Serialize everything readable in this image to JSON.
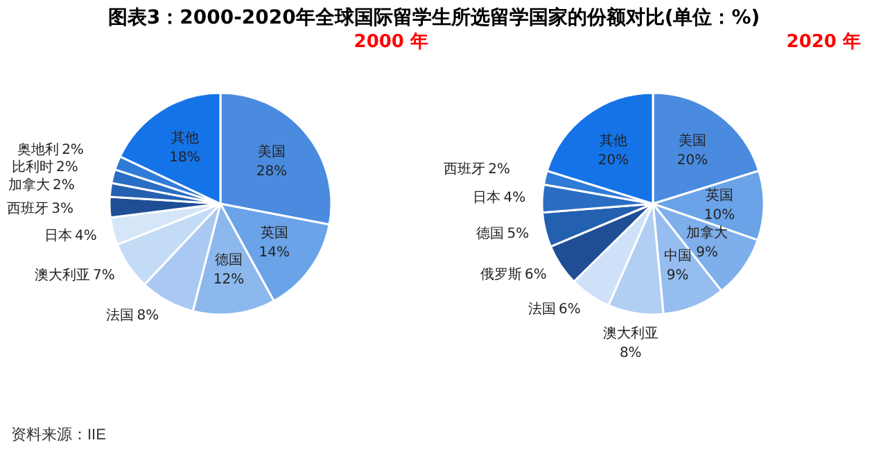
{
  "chart_data": [
    {
      "type": "pie",
      "title": "图表3：2000-2020年全球国际留学生所选留学国家的份额对比(单位：%)",
      "subtitle": "2000 年",
      "categories": [
        "美国",
        "英国",
        "德国",
        "法国",
        "澳大利亚",
        "日本",
        "西班牙",
        "加拿大",
        "比利时",
        "奥地利",
        "其他"
      ],
      "values": [
        28,
        14,
        12,
        8,
        7,
        4,
        3,
        2,
        2,
        2,
        18
      ],
      "value_labels": [
        "28%",
        "14%",
        "12%",
        "8%",
        "7%",
        "4%",
        "3%",
        "2%",
        "2%",
        "2%",
        "18%"
      ],
      "colors": [
        "#4a8be0",
        "#6aa3e8",
        "#8db8ee",
        "#a9c9f2",
        "#c4dbf6",
        "#d6e6f9",
        "#1f4e95",
        "#2460b0",
        "#2a6ec4",
        "#2f7bd8",
        "#1573e8"
      ],
      "legend": false,
      "data_labels": true,
      "annotations": [
        "资料来源：IIE"
      ]
    },
    {
      "type": "pie",
      "subtitle": "2020 年",
      "categories": [
        "美国",
        "英国",
        "加拿大",
        "中国",
        "澳大利亚",
        "法国",
        "俄罗斯",
        "德国",
        "日本",
        "西班牙",
        "其他"
      ],
      "values": [
        20,
        10,
        9,
        9,
        8,
        6,
        6,
        5,
        4,
        2,
        20
      ],
      "value_labels": [
        "20%",
        "10%",
        "9%",
        "9%",
        "8%",
        "6%",
        "6%",
        "5%",
        "4%",
        "2%",
        "20%"
      ],
      "colors": [
        "#4a8be0",
        "#6aa3e8",
        "#7eaeeb",
        "#95bdef",
        "#b2cff3",
        "#cfe1f8",
        "#1f4e95",
        "#2460b0",
        "#2a6ec4",
        "#2f7bd8",
        "#1573e8"
      ],
      "legend": false,
      "data_labels": true
    }
  ]
}
